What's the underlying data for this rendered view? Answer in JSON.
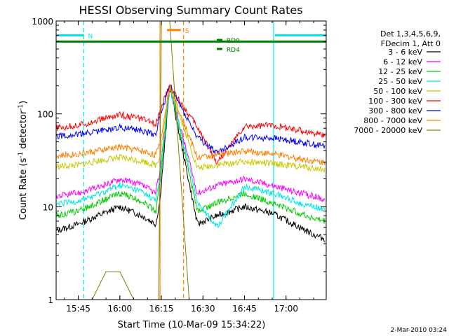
{
  "chart_data": {
    "type": "line",
    "title": "HESSI Observing Summary Count Rates",
    "xlabel": "Start Time (10-Mar-09 15:34:22)",
    "ylabel_main": "Count Rate (s",
    "ylabel_sup1": "-1",
    "ylabel_mid": " detector",
    "ylabel_sup2": "-1",
    "ylabel_end": ")",
    "y_scale": "log",
    "ylim": [
      1,
      1000
    ],
    "xlim_minutes": [
      37,
      134.5
    ],
    "x_ticks": [
      {
        "minute": 45,
        "label": "15:45"
      },
      {
        "minute": 60,
        "label": "16:00"
      },
      {
        "minute": 75,
        "label": "16:15"
      },
      {
        "minute": 90,
        "label": "16:30"
      },
      {
        "minute": 105,
        "label": "16:45"
      },
      {
        "minute": 120,
        "label": "17:00"
      }
    ],
    "y_ticks": [
      {
        "value": 1,
        "label": "1"
      },
      {
        "value": 10,
        "label": "10"
      },
      {
        "value": 100,
        "label": "100"
      },
      {
        "value": 1000,
        "label": "1000"
      }
    ],
    "legend": {
      "placement": "right",
      "header_line1": "Det 1,3,4,5,6,9,",
      "header_line2": "FDecim 1, Att 0"
    },
    "series": [
      {
        "name": "3 - 6 keV",
        "color": "#000000",
        "x": [
          37,
          45,
          52,
          60,
          68,
          73,
          74.5,
          78,
          88,
          95,
          105,
          115,
          125,
          130,
          134
        ],
        "y": [
          5.5,
          6.5,
          8,
          10,
          8,
          6.5,
          12,
          200,
          6.5,
          8,
          10,
          8.5,
          6,
          5,
          4.5
        ]
      },
      {
        "name": "6 - 12 keV",
        "color": "#ff00ff",
        "x": [
          37,
          45,
          52,
          60,
          68,
          73,
          74.5,
          78,
          88,
          95,
          105,
          115,
          125,
          130,
          134
        ],
        "y": [
          13,
          14,
          16,
          20,
          17,
          14,
          25,
          200,
          14,
          17,
          20,
          17,
          14,
          13,
          12
        ]
      },
      {
        "name": "12 - 25 keV",
        "color": "#00cc00",
        "x": [
          37,
          45,
          52,
          60,
          68,
          73,
          74.5,
          78,
          88,
          95,
          105,
          115,
          125,
          130,
          134
        ],
        "y": [
          8,
          9,
          11,
          14,
          11.5,
          9,
          18,
          200,
          9,
          11,
          14,
          11,
          8.5,
          7.5,
          7
        ]
      },
      {
        "name": "25 - 50 keV",
        "color": "#00e5e5",
        "x": [
          37,
          45,
          52,
          60,
          68,
          73,
          74.5,
          78,
          88,
          95,
          105,
          115,
          125,
          130,
          134
        ],
        "y": [
          10.5,
          11.5,
          13.5,
          17,
          14.5,
          11.5,
          22,
          200,
          11.5,
          6,
          16.5,
          14,
          11,
          10,
          9.5
        ]
      },
      {
        "name": "50 - 100 keV",
        "color": "#c8c800",
        "x": [
          37,
          45,
          52,
          60,
          68,
          73,
          74.5,
          78,
          88,
          95,
          105,
          115,
          125,
          130,
          134
        ],
        "y": [
          27,
          28,
          31,
          34,
          31,
          28,
          35,
          200,
          26,
          28,
          31,
          29,
          27,
          26,
          25
        ]
      },
      {
        "name": "100 - 300 keV",
        "color": "#ff0000",
        "x": [
          37,
          45,
          52,
          60,
          68,
          73,
          74.5,
          78,
          88,
          95,
          105,
          115,
          125,
          130,
          134
        ],
        "y": [
          70,
          75,
          85,
          98,
          88,
          78,
          110,
          200,
          72,
          30,
          72,
          76,
          66,
          62,
          60
        ]
      },
      {
        "name": "300 - 800 keV",
        "color": "#0000ff",
        "x": [
          37,
          45,
          52,
          60,
          68,
          73,
          74.5,
          78,
          88,
          95,
          105,
          115,
          125,
          130,
          134
        ],
        "y": [
          58,
          60,
          65,
          72,
          66,
          60,
          95,
          200,
          56,
          38,
          56,
          55,
          50,
          47,
          45
        ]
      },
      {
        "name": "800 - 7000 keV",
        "color": "#ff8000",
        "x": [
          37,
          45,
          52,
          60,
          68,
          73,
          74.5,
          78,
          88,
          95,
          105,
          115,
          125,
          130,
          134
        ],
        "y": [
          35,
          37,
          40,
          44,
          40,
          36,
          48,
          200,
          34,
          36,
          40,
          37,
          33,
          31,
          30
        ]
      },
      {
        "name": "7000 - 20000 keV",
        "color": "#808000",
        "x": [
          37,
          50,
          55,
          60,
          65,
          74,
          75,
          78,
          85,
          134
        ],
        "y": [
          1,
          1,
          2,
          2,
          1,
          1,
          1000,
          1000,
          1,
          1
        ]
      }
    ],
    "flags": [
      {
        "label": "N",
        "color": "#00e5e5",
        "value": 700,
        "spans": [
          [
            37,
            47
          ],
          [
            116,
            134.5
          ]
        ]
      },
      {
        "label": "S",
        "color": "#ff8000",
        "value": 800,
        "spans": [
          [
            77,
            82
          ]
        ]
      },
      {
        "label": "",
        "color": "#008000",
        "value": 600,
        "spans": [
          [
            37,
            134.5
          ]
        ]
      },
      {
        "label": "RD4",
        "color": "#008000",
        "value": 500,
        "spans": [
          [
            95,
            97
          ]
        ]
      },
      {
        "label": "RD9",
        "color": "#008000",
        "value": 625,
        "spans": [
          [
            95,
            97
          ]
        ]
      }
    ],
    "vertical_markers": [
      {
        "minute": 37,
        "color": "#00e5e5",
        "style": "solid"
      },
      {
        "minute": 47,
        "color": "#00e5e5",
        "style": "dashed"
      },
      {
        "minute": 74.5,
        "color": "#ff8000",
        "style": "solid"
      },
      {
        "minute": 83,
        "color": "#ff8000",
        "style": "dashed"
      },
      {
        "minute": 115.5,
        "color": "#00e5e5",
        "style": "solid"
      },
      {
        "minute": 134.5,
        "color": "#00e5e5",
        "style": "dashed"
      }
    ]
  },
  "footer": {
    "timestamp": "2-Mar-2010 03:24"
  }
}
